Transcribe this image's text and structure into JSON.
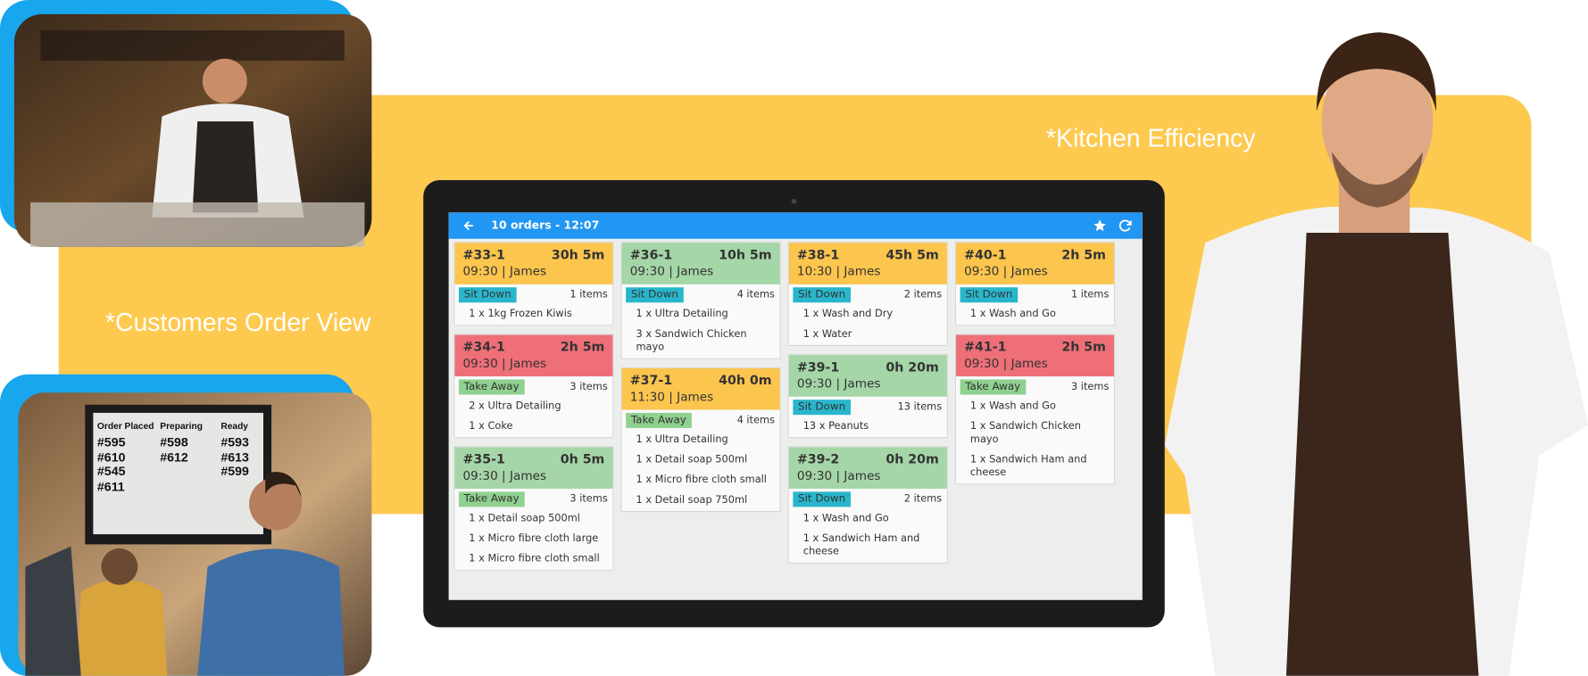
{
  "captions": {
    "customers": "*Customers Order View",
    "kitchen": "*Kitchen Efficiency"
  },
  "display_board": {
    "columns": [
      {
        "title": "Order Placed",
        "numbers": [
          "#595",
          "#610",
          "#545",
          "#611"
        ]
      },
      {
        "title": "Preparing",
        "numbers": [
          "#598",
          "#612"
        ]
      },
      {
        "title": "Ready",
        "numbers": [
          "#593",
          "#613",
          "#599"
        ]
      }
    ]
  },
  "app": {
    "header": "10 orders - 12:07",
    "columns": [
      [
        {
          "id": "#33-1",
          "elapsed": "30h 5m",
          "info": "09:30 | James",
          "color": "#fbc54e",
          "type": "Sit Down",
          "type_color": "#29b6cc",
          "count": "1 items",
          "items": [
            "1 x 1kg Frozen Kiwis"
          ]
        },
        {
          "id": "#34-1",
          "elapsed": "2h 5m",
          "info": "09:30 | James",
          "color": "#ee6f78",
          "type": "Take Away",
          "type_color": "#8fd18f",
          "count": "3 items",
          "items": [
            "2 x Ultra Detailing",
            "1 x Coke"
          ]
        },
        {
          "id": "#35-1",
          "elapsed": "0h 5m",
          "info": "09:30 | James",
          "color": "#a5d6a7",
          "type": "Take Away",
          "type_color": "#8fd18f",
          "count": "3 items",
          "items": [
            "1 x Detail soap 500ml",
            "1 x Micro fibre cloth large",
            "1 x Micro fibre cloth small"
          ]
        }
      ],
      [
        {
          "id": "#36-1",
          "elapsed": "10h 5m",
          "info": "09:30 | James",
          "color": "#a5d6a7",
          "type": "Sit Down",
          "type_color": "#29b6cc",
          "count": "4 items",
          "items": [
            "1 x Ultra Detailing",
            "3 x Sandwich Chicken mayo"
          ]
        },
        {
          "id": "#37-1",
          "elapsed": "40h 0m",
          "info": "11:30 | James",
          "color": "#fbc54e",
          "type": "Take Away",
          "type_color": "#8fd18f",
          "count": "4 items",
          "items": [
            "1 x Ultra Detailing",
            "1 x Detail soap 500ml",
            "1 x Micro fibre cloth small",
            "1 x Detail soap 750ml"
          ]
        }
      ],
      [
        {
          "id": "#38-1",
          "elapsed": "45h 5m",
          "info": "10:30 | James",
          "color": "#fbc54e",
          "type": "Sit Down",
          "type_color": "#29b6cc",
          "count": "2 items",
          "items": [
            "1 x Wash and Dry",
            "1 x Water"
          ]
        },
        {
          "id": "#39-1",
          "elapsed": "0h 20m",
          "info": "09:30 | James",
          "color": "#a5d6a7",
          "type": "Sit Down",
          "type_color": "#29b6cc",
          "count": "13 items",
          "items": [
            "13 x Peanuts"
          ]
        },
        {
          "id": "#39-2",
          "elapsed": "0h 20m",
          "info": "09:30 | James",
          "color": "#a5d6a7",
          "type": "Sit Down",
          "type_color": "#29b6cc",
          "count": "2 items",
          "items": [
            "1 x Wash and Go",
            "1 x Sandwich Ham and cheese"
          ]
        }
      ],
      [
        {
          "id": "#40-1",
          "elapsed": "2h 5m",
          "info": "09:30 | James",
          "color": "#fbc54e",
          "type": "Sit Down",
          "type_color": "#29b6cc",
          "count": "1 items",
          "items": [
            "1 x Wash and Go"
          ]
        },
        {
          "id": "#41-1",
          "elapsed": "2h 5m",
          "info": "09:30 | James",
          "color": "#ee6f78",
          "type": "Take Away",
          "type_color": "#8fd18f",
          "count": "3 items",
          "items": [
            "1 x Wash and Go",
            "1 x Sandwich Chicken mayo",
            "1 x Sandwich Ham and cheese"
          ]
        }
      ]
    ]
  }
}
